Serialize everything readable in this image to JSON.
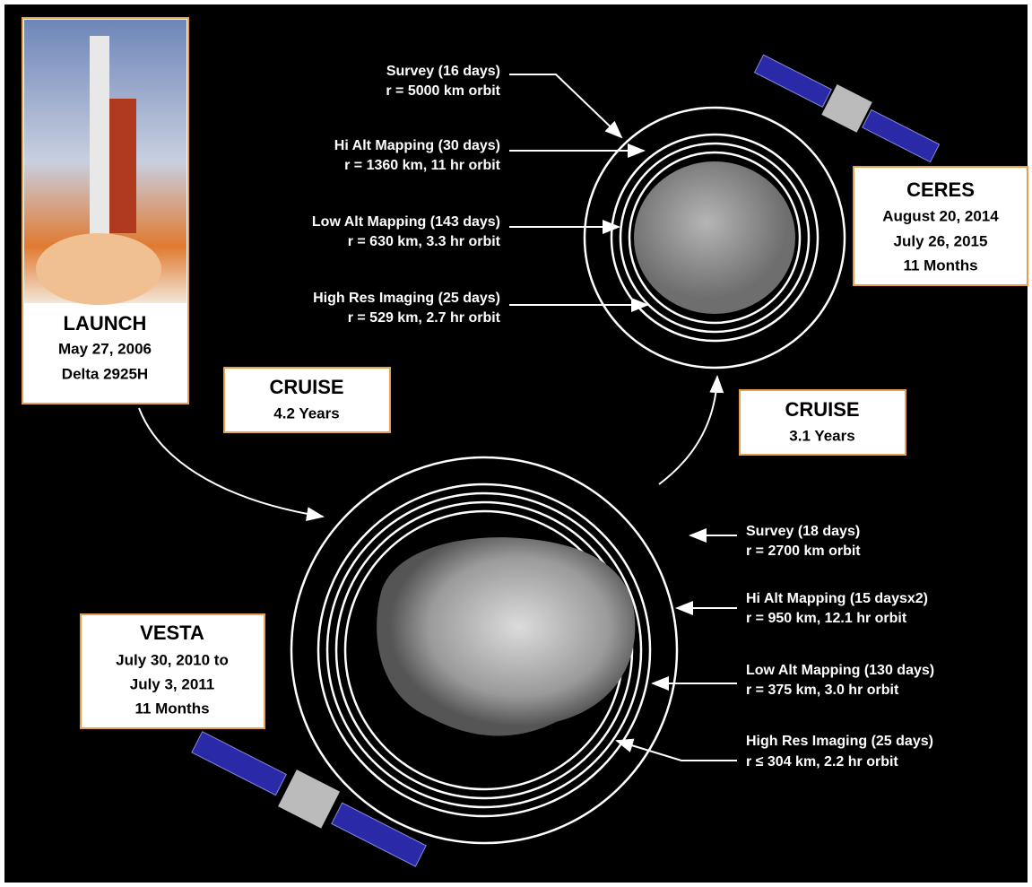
{
  "launch": {
    "title": "LAUNCH",
    "lines": [
      "May 27, 2006",
      "Delta 2925H"
    ]
  },
  "cruise_1": {
    "title": "CRUISE",
    "duration": "4.2 Years"
  },
  "cruise_2": {
    "title": "CRUISE",
    "duration": "3.1 Years"
  },
  "ceres": {
    "title": "CERES",
    "lines": [
      "August 20, 2014",
      "July 26, 2015",
      "11 Months"
    ],
    "orbits": [
      {
        "phase": "Survey (16 days)",
        "orbit": "r = 5000 km orbit"
      },
      {
        "phase": "Hi Alt Mapping (30 days)",
        "orbit": "r = 1360 km, 11 hr orbit"
      },
      {
        "phase": "Low Alt Mapping (143 days)",
        "orbit": "r = 630 km, 3.3 hr orbit"
      },
      {
        "phase": "High Res Imaging (25 days)",
        "orbit": "r = 529 km, 2.7 hr orbit"
      }
    ]
  },
  "vesta": {
    "title": "VESTA",
    "lines": [
      "July 30, 2010 to",
      "July 3, 2011",
      "11 Months"
    ],
    "orbits": [
      {
        "phase": "Survey (18 days)",
        "orbit": "r = 2700 km orbit"
      },
      {
        "phase": "Hi Alt Mapping (15 daysx2)",
        "orbit": "r = 950 km, 12.1 hr orbit"
      },
      {
        "phase": "Low Alt Mapping (130 days)",
        "orbit": "r = 375 km, 3.0 hr orbit"
      },
      {
        "phase": "High Res Imaging (25 days)",
        "orbit": "r ≤ 304 km, 2.2 hr orbit"
      }
    ]
  }
}
